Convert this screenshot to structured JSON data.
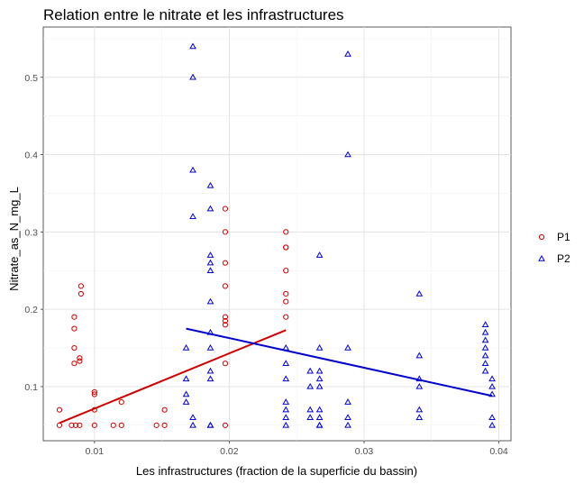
{
  "chart_data": {
    "type": "scatter",
    "title": "Relation entre le nitrate et les infrastructures",
    "xlabel": "Les infrastructures (fraction de la superficie du bassin)",
    "ylabel": "Nitrate_as_N_mg_L",
    "xlim": [
      0.0062,
      0.0409
    ],
    "ylim": [
      0.03,
      0.565
    ],
    "xticks": [
      0.01,
      0.02,
      0.03,
      0.04
    ],
    "xtick_labels": [
      "0.01",
      "0.02",
      "0.03",
      "0.04"
    ],
    "yticks": [
      0.1,
      0.2,
      0.3,
      0.4,
      0.5
    ],
    "ytick_labels": [
      "0.1",
      "0.2",
      "0.3",
      "0.4",
      "0.5"
    ],
    "grid": true,
    "legend_position": "right",
    "series": [
      {
        "name": "P1",
        "color": "#cc0000",
        "marker": "circle",
        "points": [
          [
            0.0074,
            0.07
          ],
          [
            0.0074,
            0.05
          ],
          [
            0.0083,
            0.05
          ],
          [
            0.0086,
            0.05
          ],
          [
            0.0089,
            0.05
          ],
          [
            0.0085,
            0.19
          ],
          [
            0.0085,
            0.175
          ],
          [
            0.0085,
            0.15
          ],
          [
            0.0085,
            0.13
          ],
          [
            0.0089,
            0.133
          ],
          [
            0.0089,
            0.137
          ],
          [
            0.009,
            0.23
          ],
          [
            0.009,
            0.22
          ],
          [
            0.01,
            0.093
          ],
          [
            0.01,
            0.09
          ],
          [
            0.01,
            0.07
          ],
          [
            0.01,
            0.05
          ],
          [
            0.0114,
            0.05
          ],
          [
            0.012,
            0.08
          ],
          [
            0.012,
            0.05
          ],
          [
            0.0146,
            0.05
          ],
          [
            0.0152,
            0.05
          ],
          [
            0.0152,
            0.07
          ],
          [
            0.0197,
            0.33
          ],
          [
            0.0197,
            0.3
          ],
          [
            0.0197,
            0.26
          ],
          [
            0.0197,
            0.23
          ],
          [
            0.0197,
            0.19
          ],
          [
            0.0197,
            0.185
          ],
          [
            0.0197,
            0.18
          ],
          [
            0.0197,
            0.13
          ],
          [
            0.0197,
            0.05
          ],
          [
            0.0242,
            0.3
          ],
          [
            0.0242,
            0.28
          ],
          [
            0.0242,
            0.28
          ],
          [
            0.0242,
            0.25
          ],
          [
            0.0242,
            0.22
          ],
          [
            0.0242,
            0.21
          ],
          [
            0.0242,
            0.19
          ]
        ],
        "fit_line": {
          "x": [
            0.0074,
            0.0242
          ],
          "y": [
            0.053,
            0.173
          ]
        }
      },
      {
        "name": "P2",
        "color": "#0000cc",
        "marker": "triangle",
        "points": [
          [
            0.0168,
            0.15
          ],
          [
            0.0168,
            0.11
          ],
          [
            0.0168,
            0.09
          ],
          [
            0.0168,
            0.08
          ],
          [
            0.0173,
            0.54
          ],
          [
            0.0173,
            0.5
          ],
          [
            0.0173,
            0.38
          ],
          [
            0.0173,
            0.32
          ],
          [
            0.0173,
            0.06
          ],
          [
            0.0173,
            0.05
          ],
          [
            0.0186,
            0.36
          ],
          [
            0.0186,
            0.33
          ],
          [
            0.0186,
            0.27
          ],
          [
            0.0186,
            0.26
          ],
          [
            0.0186,
            0.25
          ],
          [
            0.0186,
            0.21
          ],
          [
            0.0186,
            0.17
          ],
          [
            0.0186,
            0.15
          ],
          [
            0.0186,
            0.12
          ],
          [
            0.0186,
            0.11
          ],
          [
            0.0186,
            0.05
          ],
          [
            0.0186,
            0.05
          ],
          [
            0.0242,
            0.15
          ],
          [
            0.0242,
            0.13
          ],
          [
            0.0242,
            0.11
          ],
          [
            0.0242,
            0.08
          ],
          [
            0.0242,
            0.07
          ],
          [
            0.0242,
            0.06
          ],
          [
            0.0242,
            0.05
          ],
          [
            0.026,
            0.12
          ],
          [
            0.026,
            0.1
          ],
          [
            0.026,
            0.07
          ],
          [
            0.026,
            0.06
          ],
          [
            0.0267,
            0.27
          ],
          [
            0.0267,
            0.15
          ],
          [
            0.0267,
            0.12
          ],
          [
            0.0267,
            0.11
          ],
          [
            0.0267,
            0.1
          ],
          [
            0.0267,
            0.07
          ],
          [
            0.0267,
            0.06
          ],
          [
            0.0267,
            0.05
          ],
          [
            0.0267,
            0.05
          ],
          [
            0.0288,
            0.53
          ],
          [
            0.0288,
            0.4
          ],
          [
            0.0288,
            0.15
          ],
          [
            0.0288,
            0.08
          ],
          [
            0.0288,
            0.06
          ],
          [
            0.0288,
            0.05
          ],
          [
            0.0341,
            0.22
          ],
          [
            0.0341,
            0.14
          ],
          [
            0.0341,
            0.11
          ],
          [
            0.0341,
            0.1
          ],
          [
            0.0341,
            0.07
          ],
          [
            0.0341,
            0.06
          ],
          [
            0.039,
            0.18
          ],
          [
            0.039,
            0.17
          ],
          [
            0.039,
            0.16
          ],
          [
            0.039,
            0.15
          ],
          [
            0.039,
            0.14
          ],
          [
            0.039,
            0.13
          ],
          [
            0.039,
            0.12
          ],
          [
            0.0395,
            0.11
          ],
          [
            0.0395,
            0.1
          ],
          [
            0.0395,
            0.09
          ],
          [
            0.0395,
            0.06
          ],
          [
            0.0395,
            0.05
          ]
        ],
        "fit_line": {
          "x": [
            0.0168,
            0.0395
          ],
          "y": [
            0.175,
            0.088
          ]
        }
      }
    ]
  }
}
